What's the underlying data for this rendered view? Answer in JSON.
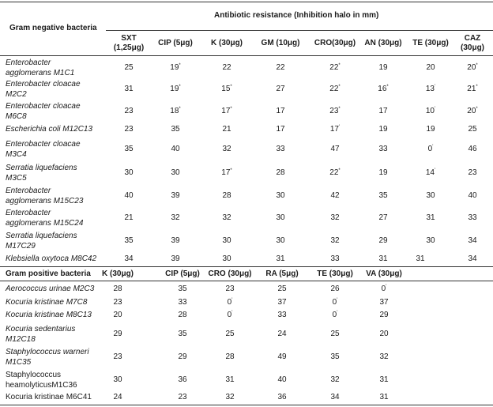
{
  "table": {
    "gram_negative_header": "Gram negative bacteria",
    "resistance_header": "Antibiotic resistance (Inhibition halo in mm)",
    "neg_columns": [
      {
        "label1": "SXT",
        "label2": "(1,25μg)"
      },
      {
        "label1": "CIP (5μg)",
        "label2": ""
      },
      {
        "label1": "K (30μg)",
        "label2": ""
      },
      {
        "label1": "GM (10μg)",
        "label2": ""
      },
      {
        "label1": "CRO(30μg)",
        "label2": ""
      },
      {
        "label1": "AN (30μg)",
        "label2": ""
      },
      {
        "label1": "TE (30μg)",
        "label2": ""
      },
      {
        "label1": "CAZ",
        "label2": "(30μg)"
      }
    ],
    "neg_rows": [
      {
        "name1": "Enterobacter",
        "name2": "agglomerans M1C1",
        "italic": true,
        "values": [
          "25",
          "19",
          "22",
          "22",
          "22",
          "19",
          "20",
          "20"
        ],
        "marks": [
          "",
          "*",
          "",
          "",
          "*",
          "",
          "",
          "*"
        ]
      },
      {
        "name1": "Enterobacter cloacae",
        "name2": "M2C2",
        "italic": true,
        "values": [
          "31",
          "19",
          "15",
          "27",
          "22",
          "16",
          "13",
          "21"
        ],
        "marks": [
          "",
          "*",
          "*",
          "",
          "*",
          "*",
          "'",
          "*"
        ]
      },
      {
        "name1": "Enterobacter cloacae",
        "name2": "M6C8",
        "italic": true,
        "values": [
          "23",
          "18",
          "17",
          "17",
          "23",
          "17",
          "10",
          "20"
        ],
        "marks": [
          "",
          "*",
          "*",
          "",
          "*",
          "",
          "'",
          "*"
        ]
      },
      {
        "name1": "Escherichia coli M12C13",
        "name2": "",
        "italic": true,
        "values": [
          "23",
          "35",
          "21",
          "17",
          "17",
          "19",
          "19",
          "25"
        ],
        "marks": [
          "",
          "",
          "",
          "",
          "'",
          "",
          "",
          ""
        ]
      },
      {
        "name1": "Enterobacter cloacae",
        "name2": "M3C4",
        "italic": true,
        "values": [
          "35",
          "40",
          "32",
          "33",
          "47",
          "33",
          "0",
          "46"
        ],
        "marks": [
          "",
          "",
          "",
          "",
          "",
          "",
          "'",
          ""
        ]
      },
      {
        "name1": "Serratia liquefaciens",
        "name2": "M3C5",
        "italic": true,
        "values": [
          "30",
          "30",
          "17",
          "28",
          "22",
          "19",
          "14",
          "23"
        ],
        "marks": [
          "",
          "",
          "*",
          "",
          "*",
          "",
          "'",
          ""
        ]
      },
      {
        "name1": "Enterobacter",
        "name2": "agglomerans M15C23",
        "italic": true,
        "values": [
          "40",
          "39",
          "28",
          "30",
          "42",
          "35",
          "30",
          "40"
        ],
        "marks": [
          "",
          "",
          "",
          "",
          "",
          "",
          "",
          ""
        ]
      },
      {
        "name1": "Enterobacter",
        "name2": "agglomerans M15C24",
        "italic": true,
        "values": [
          "21",
          "32",
          "32",
          "30",
          "32",
          "27",
          "31",
          "33"
        ],
        "marks": [
          "",
          "",
          "",
          "",
          "",
          "",
          "",
          ""
        ]
      },
      {
        "name1": "Serratia liquefaciens",
        "name2": "M17C29",
        "italic": true,
        "values": [
          "35",
          "39",
          "30",
          "30",
          "32",
          "29",
          "30",
          "34"
        ],
        "marks": [
          "",
          "",
          "",
          "",
          "",
          "",
          "",
          ""
        ]
      },
      {
        "name1": "Klebsiella oxytoca M8C42",
        "name2": "",
        "italic": true,
        "values": [
          "34",
          "39",
          "30",
          "31",
          "33",
          "31",
          "31",
          "34"
        ],
        "marks": [
          "",
          "",
          "",
          "",
          "",
          "",
          "",
          ""
        ]
      }
    ],
    "gram_positive_header": "Gram positive bacteria",
    "pos_columns": [
      "K (30μg)",
      "CIP (5μg)",
      "CRO (30μg)",
      "RA (5μg)",
      "TE (30μg)",
      "VA (30μg)"
    ],
    "pos_rows": [
      {
        "name1": "Aerococcus urinae M2C3",
        "name2": "",
        "italic": true,
        "values": [
          "28",
          "35",
          "23",
          "25",
          "26",
          "0"
        ],
        "marks": [
          "",
          "",
          "",
          "",
          "",
          "'"
        ]
      },
      {
        "name1": "Kocuria kristinae M7C8",
        "name2": "",
        "italic": true,
        "values": [
          "23",
          "33",
          "0",
          "37",
          "0",
          "37"
        ],
        "marks": [
          "",
          "",
          "'",
          "",
          "'",
          ""
        ]
      },
      {
        "name1": "Kocuria kristinae M8C13",
        "name2": "",
        "italic": true,
        "values": [
          "20",
          "28",
          "0",
          "33",
          "0",
          "29"
        ],
        "marks": [
          "",
          "",
          "'",
          "",
          "'",
          ""
        ]
      },
      {
        "name1": "Kocuria sedentarius",
        "name2": "M12C18",
        "italic": true,
        "values": [
          "29",
          "35",
          "25",
          "24",
          "25",
          "20"
        ],
        "marks": [
          "",
          "",
          "",
          "",
          "",
          ""
        ]
      },
      {
        "name1": "Staphylococcus warneri",
        "name2": "M1C35",
        "italic": true,
        "values": [
          "23",
          "29",
          "28",
          "49",
          "35",
          "32"
        ],
        "marks": [
          "",
          "",
          "",
          "",
          "",
          ""
        ]
      },
      {
        "name1": "Staphylococcus",
        "name2": "heamolyticusM1C36",
        "italic": false,
        "values": [
          "30",
          "36",
          "31",
          "40",
          "32",
          "31"
        ],
        "marks": [
          "",
          "",
          "",
          "",
          "",
          ""
        ]
      },
      {
        "name1": "Kocuria kristinae M6C41",
        "name2": "",
        "italic": false,
        "values": [
          "24",
          "23",
          "32",
          "36",
          "34",
          "31"
        ],
        "marks": [
          "",
          "",
          "",
          "",
          "",
          ""
        ]
      }
    ]
  }
}
